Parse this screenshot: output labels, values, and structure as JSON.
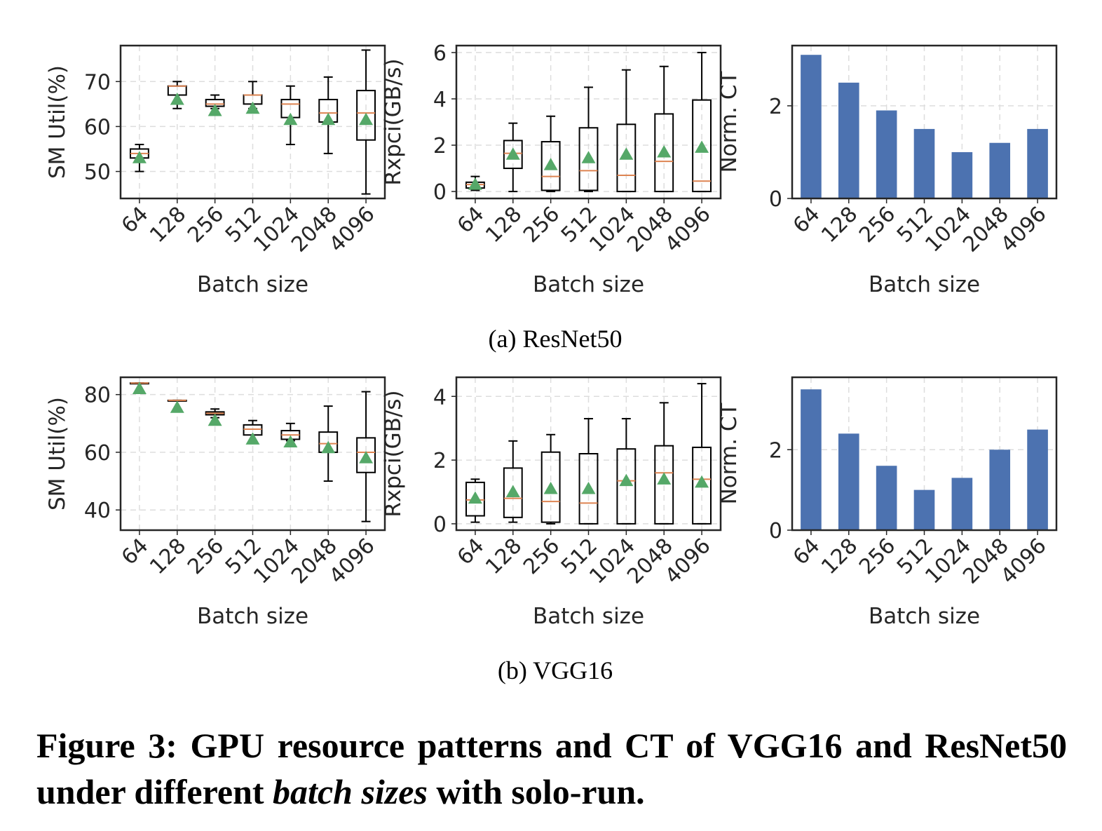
{
  "figure": {
    "subcaptions": [
      "(a)  ResNet50",
      "(b)  VGG16"
    ],
    "caption": {
      "prefix": "Figure 3: GPU resource patterns and CT of VGG16 and ResNet50 under different ",
      "italic": "batch sizes",
      "suffix": " with solo-run."
    }
  },
  "colors": {
    "bar": "#4c72b0",
    "median": "#dd8452",
    "mean_marker": "#55a868",
    "box": "#000000",
    "grid": "#dddddd"
  },
  "chart_data": [
    {
      "type": "box",
      "row": "ResNet50",
      "xlabel": "Batch size",
      "ylabel": "SM Util(%)",
      "categories": [
        "64",
        "128",
        "256",
        "512",
        "1024",
        "2048",
        "4096"
      ],
      "ylim": [
        44,
        78
      ],
      "yticks": [
        50,
        60,
        70
      ],
      "grid": true,
      "boxes": [
        {
          "whislo": 50,
          "q1": 53,
          "med": 54,
          "q3": 55,
          "whishi": 56,
          "mean": 53
        },
        {
          "whislo": 64,
          "q1": 67,
          "med": 69,
          "q3": 69,
          "whishi": 70,
          "mean": 66
        },
        {
          "whislo": 64,
          "q1": 64.5,
          "med": 65,
          "q3": 66,
          "whishi": 67,
          "mean": 63.5
        },
        {
          "whislo": 64,
          "q1": 65,
          "med": 67,
          "q3": 67,
          "whishi": 70,
          "mean": 64
        },
        {
          "whislo": 56,
          "q1": 62,
          "med": 65,
          "q3": 66,
          "whishi": 69,
          "mean": 61.5
        },
        {
          "whislo": 54,
          "q1": 61,
          "med": 63,
          "q3": 66,
          "whishi": 71,
          "mean": 61.5
        },
        {
          "whislo": 45,
          "q1": 57,
          "med": 63,
          "q3": 68,
          "whishi": 77,
          "mean": 61.5
        }
      ]
    },
    {
      "type": "box",
      "row": "ResNet50",
      "xlabel": "Batch size",
      "ylabel": "Rxpci(GB/s)",
      "categories": [
        "64",
        "128",
        "256",
        "512",
        "1024",
        "2048",
        "4096"
      ],
      "ylim": [
        -0.3,
        6.3
      ],
      "yticks": [
        0,
        2,
        4,
        6
      ],
      "grid": true,
      "boxes": [
        {
          "whislo": 0.05,
          "q1": 0.15,
          "med": 0.3,
          "q3": 0.4,
          "whishi": 0.65,
          "mean": 0.3
        },
        {
          "whislo": 0,
          "q1": 1,
          "med": 1.65,
          "q3": 2.2,
          "whishi": 2.95,
          "mean": 1.6
        },
        {
          "whislo": 0,
          "q1": 0.05,
          "med": 0.65,
          "q3": 2.15,
          "whishi": 3.25,
          "mean": 1.15
        },
        {
          "whislo": 0,
          "q1": 0.05,
          "med": 0.9,
          "q3": 2.75,
          "whishi": 4.5,
          "mean": 1.45
        },
        {
          "whislo": 0,
          "q1": 0,
          "med": 0.7,
          "q3": 2.9,
          "whishi": 5.25,
          "mean": 1.6
        },
        {
          "whislo": 0,
          "q1": 0,
          "med": 1.3,
          "q3": 3.35,
          "whishi": 5.4,
          "mean": 1.7
        },
        {
          "whislo": 0,
          "q1": 0,
          "med": 0.45,
          "q3": 3.95,
          "whishi": 6.0,
          "mean": 1.9
        }
      ]
    },
    {
      "type": "bar",
      "row": "ResNet50",
      "xlabel": "Batch size",
      "ylabel": "Norm. CT",
      "categories": [
        "64",
        "128",
        "256",
        "512",
        "1024",
        "2048",
        "4096"
      ],
      "values": [
        3.1,
        2.5,
        1.9,
        1.5,
        1.0,
        1.2,
        1.5
      ],
      "ylim": [
        0,
        3.3
      ],
      "yticks": [
        0,
        2
      ],
      "grid": true
    },
    {
      "type": "box",
      "row": "VGG16",
      "xlabel": "Batch size",
      "ylabel": "SM Util(%)",
      "categories": [
        "64",
        "128",
        "256",
        "512",
        "1024",
        "2048",
        "4096"
      ],
      "ylim": [
        33,
        86
      ],
      "yticks": [
        40,
        60,
        80
      ],
      "grid": true,
      "boxes": [
        {
          "whislo": 84,
          "q1": 84,
          "med": 84,
          "q3": 84,
          "whishi": 84,
          "mean": 82
        },
        {
          "whislo": 78,
          "q1": 78,
          "med": 78,
          "q3": 78,
          "whishi": 78,
          "mean": 75.5
        },
        {
          "whislo": 72,
          "q1": 73,
          "med": 73.5,
          "q3": 74,
          "whishi": 75,
          "mean": 71
        },
        {
          "whislo": 64,
          "q1": 66,
          "med": 68,
          "q3": 69.5,
          "whishi": 71,
          "mean": 64.5
        },
        {
          "whislo": 64,
          "q1": 64.5,
          "med": 66,
          "q3": 67.5,
          "whishi": 70,
          "mean": 63.5
        },
        {
          "whislo": 50,
          "q1": 60,
          "med": 63,
          "q3": 67,
          "whishi": 76,
          "mean": 61.5
        },
        {
          "whislo": 36,
          "q1": 53,
          "med": 60,
          "q3": 65,
          "whishi": 81,
          "mean": 58
        }
      ]
    },
    {
      "type": "box",
      "row": "VGG16",
      "xlabel": "Batch size",
      "ylabel": "Rxpci(GB/s)",
      "categories": [
        "64",
        "128",
        "256",
        "512",
        "1024",
        "2048",
        "4096"
      ],
      "ylim": [
        -0.2,
        4.6
      ],
      "yticks": [
        0,
        2,
        4
      ],
      "grid": true,
      "boxes": [
        {
          "whislo": 0.05,
          "q1": 0.25,
          "med": 0.75,
          "q3": 1.3,
          "whishi": 1.4,
          "mean": 0.8
        },
        {
          "whislo": 0.05,
          "q1": 0.2,
          "med": 0.8,
          "q3": 1.75,
          "whishi": 2.6,
          "mean": 1.0
        },
        {
          "whislo": 0,
          "q1": 0.05,
          "med": 0.7,
          "q3": 2.25,
          "whishi": 2.8,
          "mean": 1.1
        },
        {
          "whislo": 0,
          "q1": 0,
          "med": 0.65,
          "q3": 2.2,
          "whishi": 3.3,
          "mean": 1.1
        },
        {
          "whislo": 0,
          "q1": 0,
          "med": 1.35,
          "q3": 2.35,
          "whishi": 3.3,
          "mean": 1.35
        },
        {
          "whislo": 0,
          "q1": 0,
          "med": 1.6,
          "q3": 2.45,
          "whishi": 3.8,
          "mean": 1.4
        },
        {
          "whislo": 0,
          "q1": 0,
          "med": 1.4,
          "q3": 2.4,
          "whishi": 4.4,
          "mean": 1.3
        }
      ]
    },
    {
      "type": "bar",
      "row": "VGG16",
      "xlabel": "Batch size",
      "ylabel": "Norm. CT",
      "categories": [
        "64",
        "128",
        "256",
        "512",
        "1024",
        "2048",
        "4096"
      ],
      "values": [
        3.5,
        2.4,
        1.6,
        1.0,
        1.3,
        2.0,
        2.5
      ],
      "ylim": [
        0,
        3.8
      ],
      "yticks": [
        0,
        2
      ],
      "grid": true
    }
  ]
}
